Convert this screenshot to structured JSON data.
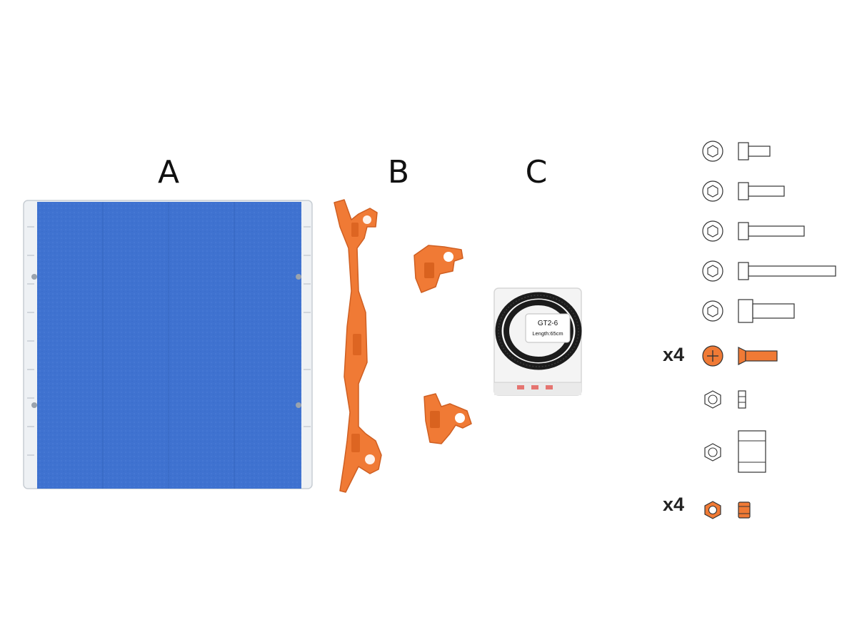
{
  "parts": {
    "a": {
      "label": "A",
      "tape_color": "#3f72d0"
    },
    "b": {
      "label": "B",
      "color": "#f07a35"
    },
    "c": {
      "label": "C",
      "bag_title": "GT2-6",
      "bag_length": "Length:65cm"
    }
  },
  "hardware": {
    "highlight_color": "#f07a35",
    "items": [
      {
        "icon": "socket-head-screw-icon"
      },
      {
        "icon": "socket-head-screw-icon"
      },
      {
        "icon": "socket-head-screw-icon"
      },
      {
        "icon": "socket-head-screw-icon"
      },
      {
        "icon": "socket-head-screw-icon"
      },
      {
        "icon": "countersunk-phillips-screw-icon",
        "quantity": "x4"
      },
      {
        "icon": "hex-nut-icon"
      },
      {
        "icon": "coupling-nut-icon"
      },
      {
        "icon": "hex-nut-icon",
        "quantity": "x4"
      }
    ]
  }
}
